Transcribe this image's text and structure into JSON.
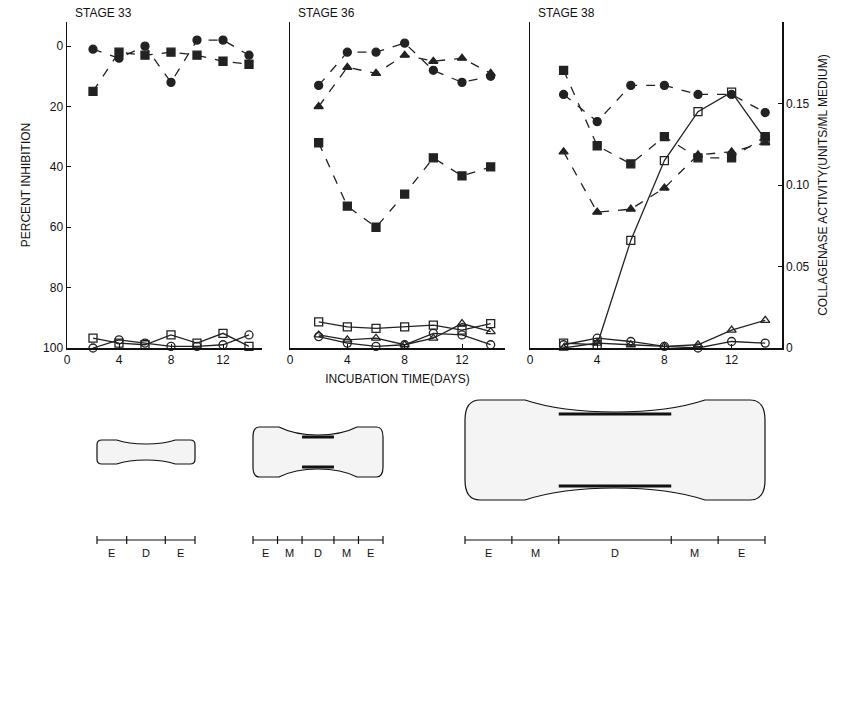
{
  "chart_data": [
    {
      "type": "line",
      "title": "STAGE 33",
      "ylabel": "PERCENT INHIBITION",
      "x": [
        2,
        4,
        6,
        8,
        10,
        12,
        14
      ],
      "xlim": [
        0,
        15
      ],
      "xticks": [
        0,
        4,
        8,
        12
      ],
      "ylim": [
        100,
        -8
      ],
      "yticks": [
        0,
        20,
        40,
        60,
        80,
        100
      ],
      "y2lim": [
        0,
        0.2
      ],
      "diagram": [
        "E",
        "D",
        "E"
      ],
      "series": [
        {
          "marker": "circle",
          "line_style": "dashed",
          "color": "#222222",
          "values": [
            1,
            4,
            0,
            12,
            -2,
            -2,
            3
          ]
        },
        {
          "marker": "square",
          "line_style": "dashed",
          "color": "#222222",
          "values": [
            15,
            2,
            3,
            2,
            3,
            5,
            6
          ]
        },
        {
          "marker": "square-open",
          "line_style": "solid",
          "color": "#222222",
          "axis": "y2",
          "values": [
            0.006,
            0.003,
            0.002,
            0.008,
            0.003,
            0.009,
            0.001
          ]
        },
        {
          "marker": "circle-open",
          "line_style": "solid",
          "color": "#222222",
          "axis": "y2",
          "values": [
            0.0,
            0.005,
            0.003,
            0.001,
            0.001,
            0.002,
            0.008
          ]
        }
      ]
    },
    {
      "type": "line",
      "title": "STAGE 36",
      "xlabel": "INCUBATION TIME(DAYS)",
      "x": [
        2,
        4,
        6,
        8,
        10,
        12,
        14
      ],
      "xlim": [
        0,
        15
      ],
      "xticks": [
        0,
        4,
        8,
        12
      ],
      "ylim": [
        100,
        -8
      ],
      "y2lim": [
        0,
        0.2
      ],
      "diagram": [
        "E",
        "M",
        "D",
        "M",
        "E"
      ],
      "series": [
        {
          "marker": "circle",
          "line_style": "dashed",
          "color": "#222222",
          "values": [
            13,
            2,
            2,
            -1,
            8,
            12,
            10
          ]
        },
        {
          "marker": "triangle",
          "line_style": "dashed",
          "color": "#222222",
          "values": [
            20,
            7,
            9,
            3,
            5,
            4,
            9
          ]
        },
        {
          "marker": "square",
          "line_style": "dashed",
          "color": "#222222",
          "values": [
            32,
            53,
            60,
            49,
            37,
            43,
            40
          ]
        },
        {
          "marker": "square-open",
          "line_style": "solid",
          "color": "#222222",
          "axis": "y2",
          "values": [
            0.016,
            0.013,
            0.012,
            0.013,
            0.014,
            0.011,
            0.015
          ]
        },
        {
          "marker": "triangle-open",
          "line_style": "solid",
          "color": "#222222",
          "axis": "y2",
          "values": [
            0.008,
            0.005,
            0.006,
            0.002,
            0.006,
            0.015,
            0.01
          ]
        },
        {
          "marker": "circle-open",
          "line_style": "solid",
          "color": "#222222",
          "axis": "y2",
          "values": [
            0.007,
            0.003,
            0.001,
            0.002,
            0.009,
            0.008,
            0.002
          ]
        }
      ]
    },
    {
      "type": "line",
      "title": "STAGE 38",
      "y2label": "COLLAGENASE ACTIVITY(UNITS/ML MEDIUM)",
      "x": [
        2,
        4,
        6,
        8,
        10,
        12,
        14
      ],
      "xlim": [
        0,
        15
      ],
      "xticks": [
        0,
        4,
        8,
        12
      ],
      "ylim": [
        100,
        -8
      ],
      "y2lim": [
        0,
        0.2
      ],
      "y2ticks": [
        0,
        {
          "value": 0.05,
          "label": "0.05"
        },
        {
          "value": 0.1,
          "label": "0.10"
        },
        0.15
      ],
      "diagram": [
        "E",
        "M",
        "D",
        "M",
        "E"
      ],
      "series": [
        {
          "marker": "circle",
          "line_style": "dashed",
          "color": "#222222",
          "values": [
            16,
            25,
            13,
            13,
            16,
            16,
            22
          ]
        },
        {
          "marker": "square",
          "line_style": "dashed",
          "color": "#222222",
          "values": [
            8,
            33,
            39,
            30,
            37,
            37,
            30
          ]
        },
        {
          "marker": "triangle",
          "line_style": "dashed",
          "color": "#222222",
          "values": [
            35,
            55,
            54,
            47,
            36,
            35,
            32
          ]
        },
        {
          "marker": "square-open",
          "line_style": "solid",
          "color": "#222222",
          "axis": "y2",
          "values": [
            0.003,
            0.002,
            0.066,
            0.115,
            0.145,
            0.157,
            0.128
          ]
        },
        {
          "marker": "triangle-open",
          "line_style": "solid",
          "color": "#222222",
          "axis": "y2",
          "values": [
            0.0,
            0.003,
            0.002,
            0.001,
            0.002,
            0.011,
            0.017
          ]
        },
        {
          "marker": "circle-open",
          "line_style": "solid",
          "color": "#222222",
          "axis": "y2",
          "values": [
            0.002,
            0.006,
            0.004,
            0.001,
            0.0,
            0.004,
            0.003
          ]
        }
      ]
    }
  ]
}
